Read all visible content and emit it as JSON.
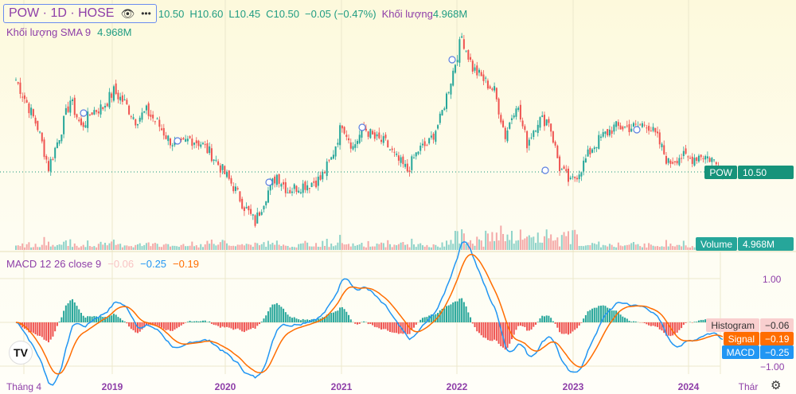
{
  "header": {
    "symbol": "POW · 1D · HOSE",
    "open": "10.50",
    "high": "H10.60",
    "low": "L10.45",
    "close": "C10.50",
    "change": "−0.05 (−0.47%)",
    "volume_label": "Khối lượng",
    "volume_value": "4.968M",
    "sma_label": "Khối lượng SMA 9",
    "sma_value": "4.968M"
  },
  "price_tag": {
    "symbol": "POW",
    "value": "10.50"
  },
  "volume_tag": {
    "label": "Volume",
    "value": "4.968M"
  },
  "macd": {
    "label": "MACD 12 26 close 9",
    "hist": "−0.06",
    "macd": "−0.25",
    "signal": "−0.19",
    "axis_top": "1.00",
    "axis_bottom": "−1.00",
    "tags": {
      "hist_label": "Histogram",
      "hist_value": "−0.06",
      "signal_label": "Signal",
      "signal_value": "−0.19",
      "macd_label": "MACD",
      "macd_value": "−0.25"
    }
  },
  "time_axis": [
    "Tháng 4",
    "2019",
    "2020",
    "2021",
    "2022",
    "2023",
    "2024",
    "Thár"
  ],
  "colors": {
    "up": "#26a69a",
    "down": "#ef5350",
    "macd": "#2196f3",
    "signal": "#ff6d00"
  },
  "chart_data": {
    "type": "candlestick",
    "series_name": "POW",
    "last": 10.5,
    "closes": [
      16.9,
      15.3,
      13.6,
      10.8,
      13.0,
      15.5,
      13.6,
      14.7,
      15.0,
      16.1,
      15.3,
      14.1,
      14.7,
      13.9,
      12.8,
      12.2,
      12.8,
      12.5,
      11.7,
      10.6,
      9.5,
      8.1,
      7.0,
      8.9,
      10.3,
      9.2,
      9.5,
      9.7,
      10.0,
      11.4,
      13.9,
      12.2,
      13.6,
      12.8,
      12.5,
      11.4,
      10.6,
      12.0,
      12.5,
      14.1,
      16.9,
      19.9,
      17.7,
      16.9,
      16.1,
      13.0,
      15.3,
      12.5,
      14.1,
      14.1,
      10.8,
      9.7,
      10.8,
      12.2,
      13.0,
      13.6,
      13.6,
      13.6,
      13.9,
      12.8,
      11.1,
      11.6,
      11.4,
      11.7,
      11.4,
      10.5
    ]
  }
}
